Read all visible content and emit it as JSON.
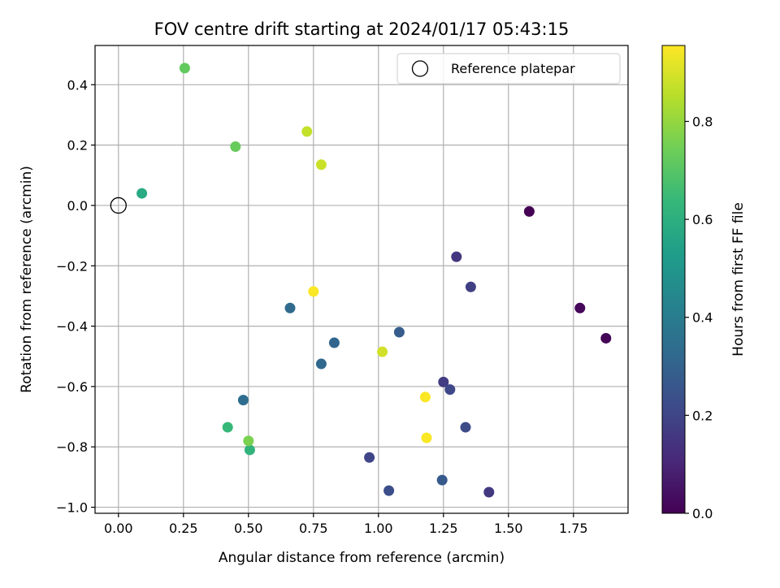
{
  "chart_data": {
    "type": "scatter",
    "title": "FOV centre drift starting at 2024/01/17 05:43:15",
    "xlabel": "Angular distance from reference (arcmin)",
    "ylabel": "Rotation from reference (arcmin)",
    "xlim": [
      -0.09,
      1.96
    ],
    "ylim": [
      -1.02,
      0.53
    ],
    "xticks": [
      "0.00",
      "0.25",
      "0.50",
      "0.75",
      "1.00",
      "1.25",
      "1.50",
      "1.75"
    ],
    "xtick_values": [
      0,
      0.25,
      0.5,
      0.75,
      1.0,
      1.25,
      1.5,
      1.75
    ],
    "yticks": [
      "0.4",
      "0.2",
      "0.0",
      "−0.2",
      "−0.4",
      "−0.6",
      "−0.8",
      "−1.0"
    ],
    "ytick_values": [
      0.4,
      0.2,
      0.0,
      -0.2,
      -0.4,
      -0.6,
      -0.8,
      -1.0
    ],
    "grid": true,
    "legend": {
      "position": "top-right",
      "entries": [
        "Reference platepar"
      ]
    },
    "reference_point": {
      "x": 0.0,
      "y": 0.0,
      "label": "Reference platepar"
    },
    "colorbar": {
      "label": "Hours from first FF file",
      "colormap": "viridis",
      "range": [
        0.0,
        0.955
      ],
      "ticks": [
        "0.0",
        "0.2",
        "0.4",
        "0.6",
        "0.8"
      ],
      "tick_values": [
        0.0,
        0.2,
        0.4,
        0.6,
        0.8
      ],
      "stops": [
        "#440154",
        "#482878",
        "#3e4989",
        "#31688e",
        "#26828e",
        "#1f9e89",
        "#35b779",
        "#6ece58",
        "#b5de2b",
        "#fde725"
      ]
    },
    "points": [
      {
        "x": 1.58,
        "y": -0.02,
        "hours": 0.0
      },
      {
        "x": 1.875,
        "y": -0.44,
        "hours": 0.01
      },
      {
        "x": 1.775,
        "y": -0.34,
        "hours": 0.02
      },
      {
        "x": 1.3,
        "y": -0.17,
        "hours": 0.15
      },
      {
        "x": 1.425,
        "y": -0.95,
        "hours": 0.16
      },
      {
        "x": 1.355,
        "y": -0.27,
        "hours": 0.18
      },
      {
        "x": 1.25,
        "y": -0.585,
        "hours": 0.17
      },
      {
        "x": 1.275,
        "y": -0.61,
        "hours": 0.21
      },
      {
        "x": 1.335,
        "y": -0.735,
        "hours": 0.22
      },
      {
        "x": 0.965,
        "y": -0.835,
        "hours": 0.2
      },
      {
        "x": 1.04,
        "y": -0.945,
        "hours": 0.23
      },
      {
        "x": 1.245,
        "y": -0.91,
        "hours": 0.27
      },
      {
        "x": 1.08,
        "y": -0.42,
        "hours": 0.28
      },
      {
        "x": 0.83,
        "y": -0.455,
        "hours": 0.31
      },
      {
        "x": 0.78,
        "y": -0.525,
        "hours": 0.32
      },
      {
        "x": 0.66,
        "y": -0.34,
        "hours": 0.33
      },
      {
        "x": 0.48,
        "y": -0.645,
        "hours": 0.34
      },
      {
        "x": 0.09,
        "y": 0.04,
        "hours": 0.58
      },
      {
        "x": 0.505,
        "y": -0.81,
        "hours": 0.62
      },
      {
        "x": 0.42,
        "y": -0.735,
        "hours": 0.64
      },
      {
        "x": 0.255,
        "y": 0.455,
        "hours": 0.72
      },
      {
        "x": 0.45,
        "y": 0.195,
        "hours": 0.73
      },
      {
        "x": 0.5,
        "y": -0.78,
        "hours": 0.76
      },
      {
        "x": 0.725,
        "y": 0.245,
        "hours": 0.87
      },
      {
        "x": 0.78,
        "y": 0.135,
        "hours": 0.88
      },
      {
        "x": 1.015,
        "y": -0.485,
        "hours": 0.89
      },
      {
        "x": 0.75,
        "y": -0.285,
        "hours": 0.95
      },
      {
        "x": 1.18,
        "y": -0.635,
        "hours": 0.95
      },
      {
        "x": 1.185,
        "y": -0.77,
        "hours": 0.95
      }
    ]
  }
}
